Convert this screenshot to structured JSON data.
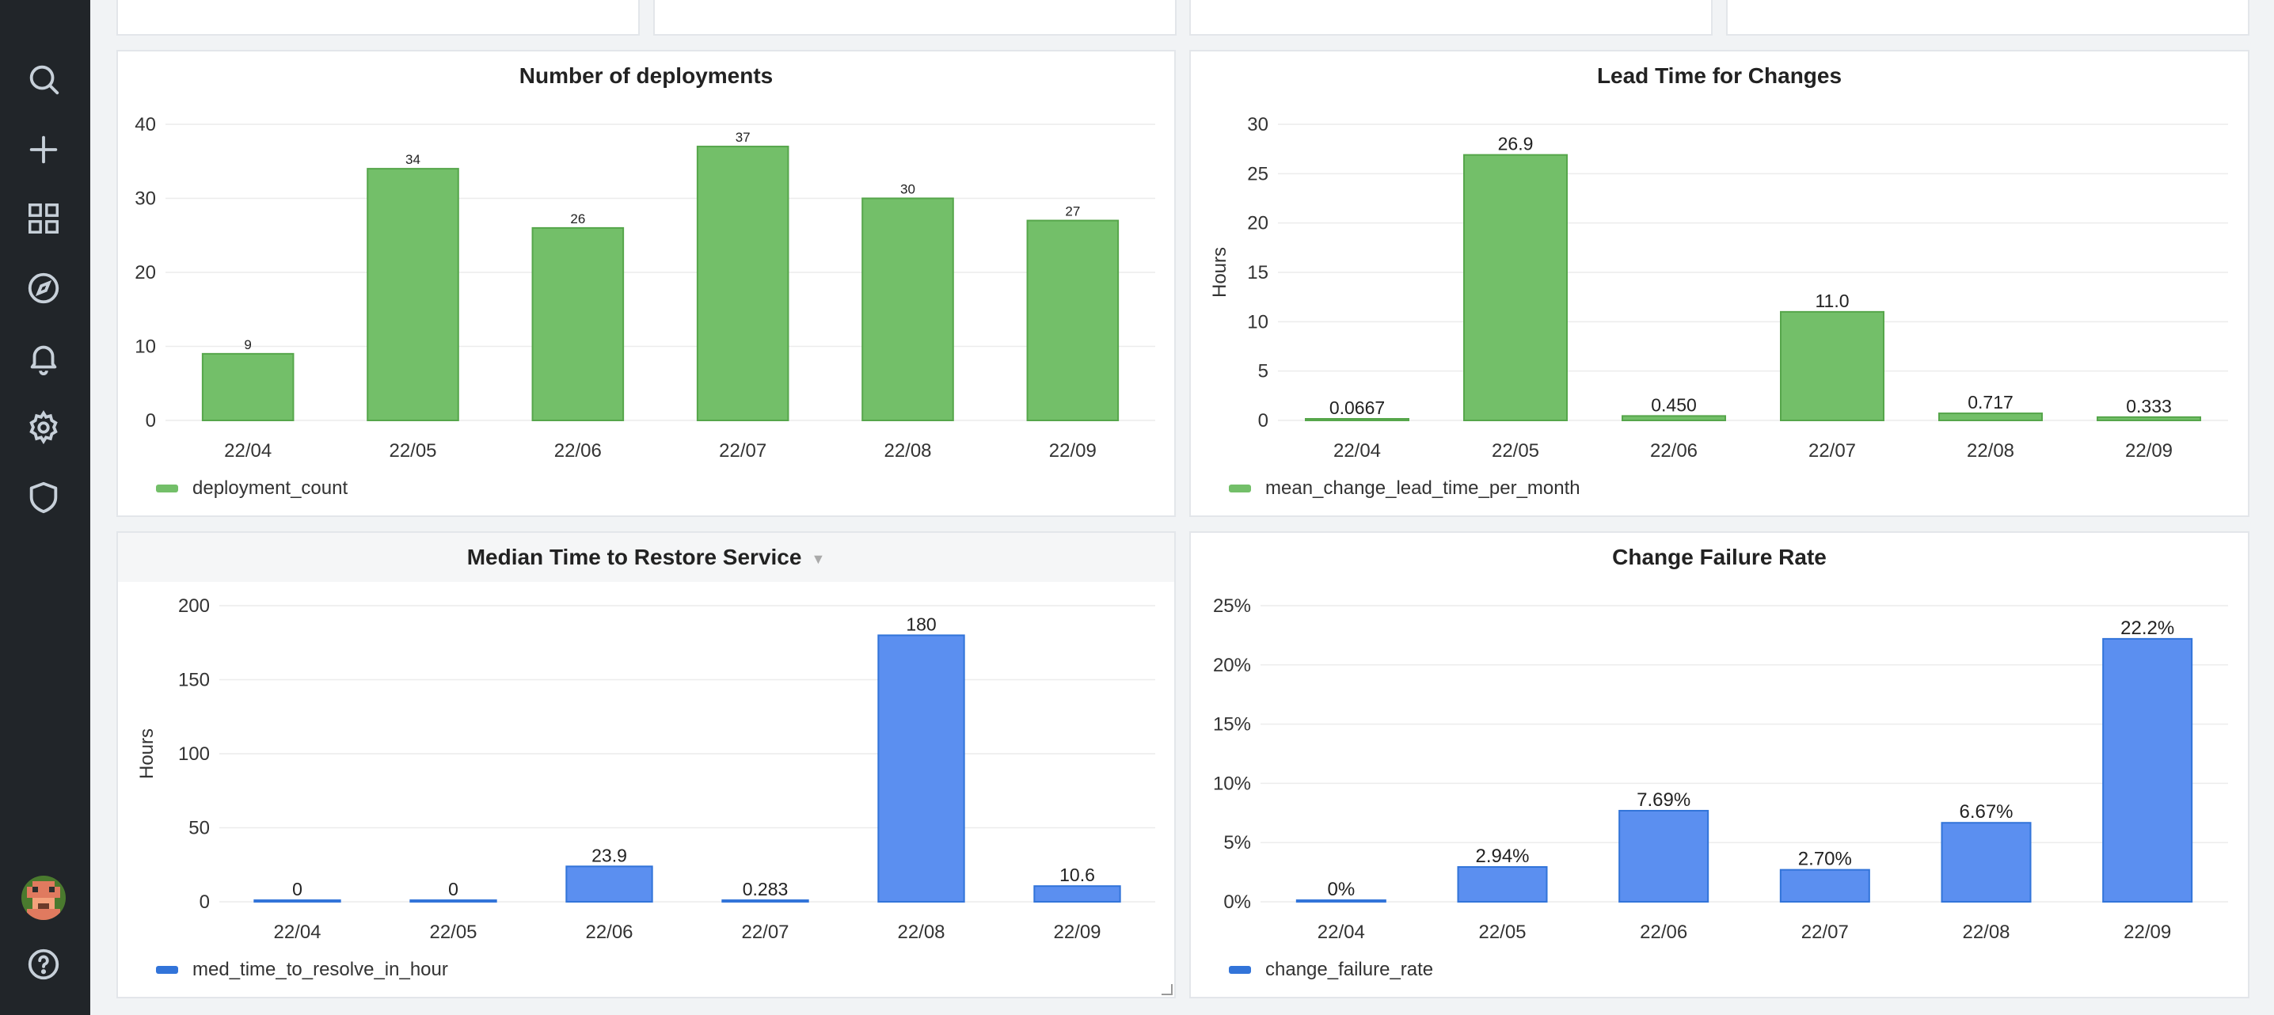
{
  "nav": {
    "items": [
      {
        "name": "search-icon",
        "icon": "search"
      },
      {
        "name": "plus-icon",
        "icon": "plus"
      },
      {
        "name": "dashboards-icon",
        "icon": "grid"
      },
      {
        "name": "explore-icon",
        "icon": "compass"
      },
      {
        "name": "alerting-icon",
        "icon": "bell"
      },
      {
        "name": "settings-icon",
        "icon": "gear"
      },
      {
        "name": "shield-icon",
        "icon": "shield"
      },
      {
        "name": "help-icon",
        "icon": "question"
      }
    ]
  },
  "colors": {
    "green": "#73bf69",
    "green_stroke": "#56a64b",
    "blue": "#5b8ff0",
    "blue_stroke": "#3274d9",
    "sidebar": "#212529"
  },
  "chart_data": [
    {
      "type": "bar",
      "title": "Number of deployments",
      "categories": [
        "22/04",
        "22/05",
        "22/06",
        "22/07",
        "22/08",
        "22/09"
      ],
      "series": [
        {
          "name": "deployment_count",
          "values": [
            9,
            34,
            26,
            37,
            30,
            27
          ]
        }
      ],
      "value_labels": [
        "9",
        "34",
        "26",
        "37",
        "30",
        "27"
      ],
      "y_ticks": [
        "0",
        "10",
        "20",
        "30",
        "40"
      ],
      "ylim": [
        0,
        40
      ],
      "ylabel": "",
      "color": "green",
      "grid": true,
      "legend": "bottom-left"
    },
    {
      "type": "bar",
      "title": "Lead Time for Changes",
      "categories": [
        "22/04",
        "22/05",
        "22/06",
        "22/07",
        "22/08",
        "22/09"
      ],
      "series": [
        {
          "name": "mean_change_lead_time_per_month",
          "values": [
            0.0667,
            26.9,
            0.45,
            11.0,
            0.717,
            0.333
          ]
        }
      ],
      "value_labels": [
        "0.0667",
        "26.9",
        "0.450",
        "11.0",
        "0.717",
        "0.333"
      ],
      "y_ticks": [
        "0",
        "5",
        "10",
        "15",
        "20",
        "25",
        "30"
      ],
      "ylim": [
        0,
        30
      ],
      "ylabel": "Hours",
      "color": "green",
      "grid": true,
      "legend": "bottom-left"
    },
    {
      "type": "bar",
      "title": "Median Time to Restore Service",
      "categories": [
        "22/04",
        "22/05",
        "22/06",
        "22/07",
        "22/08",
        "22/09"
      ],
      "series": [
        {
          "name": "med_time_to_resolve_in_hour",
          "values": [
            0,
            0,
            23.9,
            0.283,
            180,
            10.6
          ]
        }
      ],
      "value_labels": [
        "0",
        "0",
        "23.9",
        "0.283",
        "180",
        "10.6"
      ],
      "y_ticks": [
        "0",
        "50",
        "100",
        "150",
        "200"
      ],
      "ylim": [
        0,
        200
      ],
      "ylabel": "Hours",
      "color": "blue",
      "grid": true,
      "legend": "bottom-left"
    },
    {
      "type": "bar",
      "title": "Change Failure Rate",
      "categories": [
        "22/04",
        "22/05",
        "22/06",
        "22/07",
        "22/08",
        "22/09"
      ],
      "series": [
        {
          "name": "change_failure_rate",
          "values": [
            0,
            2.94,
            7.69,
            2.7,
            6.67,
            22.2
          ]
        }
      ],
      "value_labels": [
        "0%",
        "2.94%",
        "7.69%",
        "2.70%",
        "6.67%",
        "22.2%"
      ],
      "y_ticks": [
        "0%",
        "5%",
        "10%",
        "15%",
        "20%",
        "25%"
      ],
      "ylim": [
        0,
        25
      ],
      "ylabel": "",
      "color": "blue",
      "grid": true,
      "legend": "bottom-left"
    }
  ]
}
